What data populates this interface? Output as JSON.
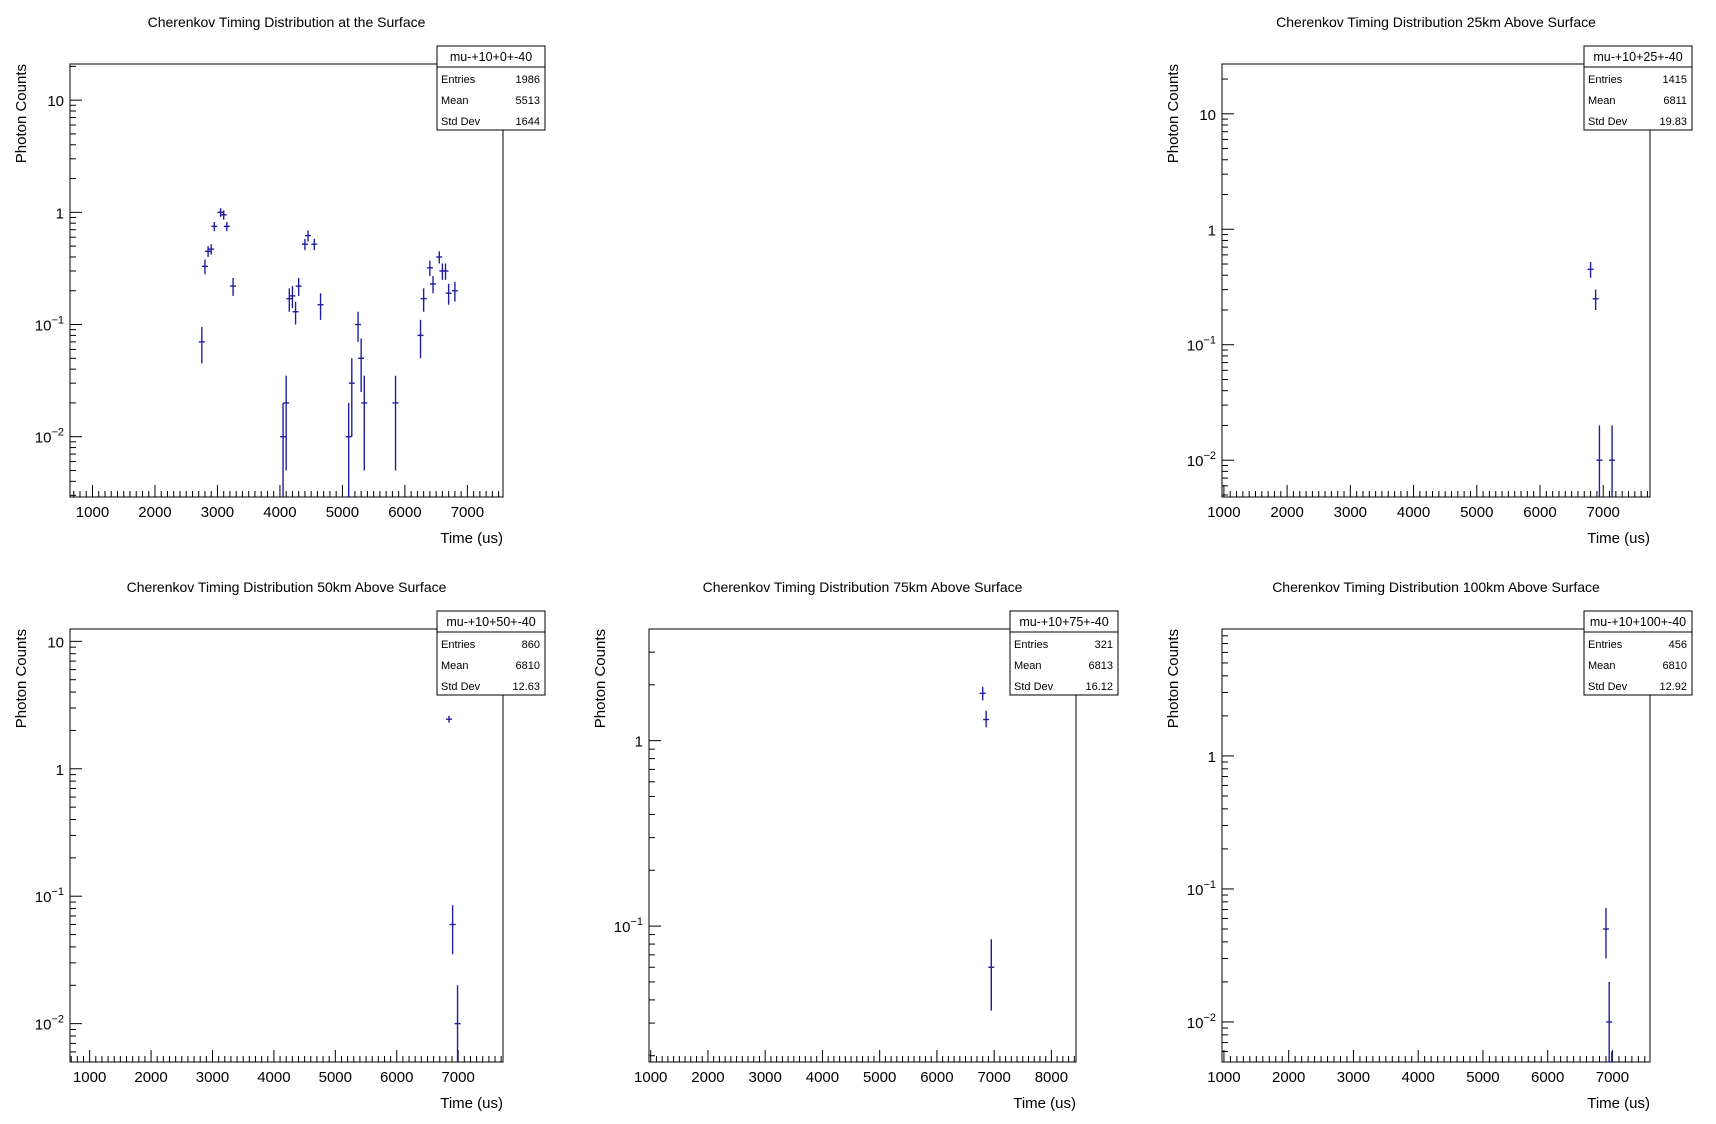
{
  "chart_data": [
    {
      "type": "scatter",
      "title": "Cherenkov Timing Distribution at the Surface",
      "xlabel": "Time (us)",
      "ylabel": "Photon Counts",
      "yscale": "log",
      "xlim": [
        640,
        7570
      ],
      "ylim": [
        0.0029,
        21
      ],
      "xticks": [
        "1000",
        "2000",
        "3000",
        "4000",
        "5000",
        "6000",
        "7000"
      ],
      "yticks": [
        {
          "v": 0.01,
          "l": "10",
          "e": "−2"
        },
        {
          "v": 0.1,
          "l": "10",
          "e": "−1"
        },
        {
          "v": 1,
          "l": "1",
          "e": ""
        },
        {
          "v": 10,
          "l": "10",
          "e": ""
        }
      ],
      "grid": false,
      "legend": {
        "name": "mu-+10+0+-40",
        "entries": "1986",
        "mean": "5513",
        "std_dev": "1644",
        "position": "top-right"
      },
      "series": [
        {
          "x": [
            2750,
            2800,
            2850,
            2900,
            2950,
            3050,
            3100,
            3150,
            3250,
            4050,
            4100,
            4150,
            4200,
            4250,
            4300,
            4400,
            4450,
            4550,
            4650,
            5100,
            5150,
            5250,
            5300,
            5350,
            5850,
            6250,
            6300,
            6400,
            6450,
            6550,
            6600,
            6650,
            6700,
            6800
          ],
          "y": [
            0.07,
            0.33,
            0.45,
            0.47,
            0.75,
            1.0,
            0.95,
            0.75,
            0.22,
            0.01,
            0.02,
            0.17,
            0.18,
            0.13,
            0.22,
            0.52,
            0.62,
            0.52,
            0.15,
            0.01,
            0.03,
            0.1,
            0.05,
            0.02,
            0.02,
            0.08,
            0.17,
            0.32,
            0.23,
            0.4,
            0.3,
            0.3,
            0.19,
            0.2
          ],
          "elo": [
            0.045,
            0.28,
            0.4,
            0.42,
            0.68,
            0.91,
            0.86,
            0.68,
            0.18,
            0.0,
            0.005,
            0.13,
            0.14,
            0.1,
            0.18,
            0.46,
            0.55,
            0.46,
            0.11,
            0.0,
            0.01,
            0.07,
            0.025,
            0.005,
            0.005,
            0.05,
            0.13,
            0.27,
            0.19,
            0.35,
            0.25,
            0.25,
            0.15,
            0.16
          ],
          "ehi": [
            0.095,
            0.38,
            0.5,
            0.52,
            0.82,
            1.09,
            1.04,
            0.82,
            0.26,
            0.02,
            0.035,
            0.21,
            0.22,
            0.16,
            0.26,
            0.58,
            0.69,
            0.58,
            0.19,
            0.02,
            0.05,
            0.13,
            0.075,
            0.035,
            0.035,
            0.11,
            0.21,
            0.37,
            0.27,
            0.45,
            0.35,
            0.35,
            0.23,
            0.24
          ]
        }
      ]
    },
    {
      "type": "scatter",
      "title": "Cherenkov Timing Distribution 25km Above Surface",
      "xlabel": "Time (us)",
      "ylabel": "Photon Counts",
      "yscale": "log",
      "xlim": [
        970,
        7740
      ],
      "ylim": [
        0.0048,
        27
      ],
      "xticks": [
        "1000",
        "2000",
        "3000",
        "4000",
        "5000",
        "6000",
        "7000"
      ],
      "yticks": [
        {
          "v": 0.01,
          "l": "10",
          "e": "−2"
        },
        {
          "v": 0.1,
          "l": "10",
          "e": "−1"
        },
        {
          "v": 1,
          "l": "1",
          "e": ""
        },
        {
          "v": 10,
          "l": "10",
          "e": ""
        }
      ],
      "grid": false,
      "legend": {
        "name": "mu-+10+25+-40",
        "entries": "1415",
        "mean": "6811",
        "std_dev": "19.83",
        "position": "top-right"
      },
      "series": [
        {
          "x": [
            6800,
            6880,
            6940,
            7140
          ],
          "y": [
            0.45,
            0.25,
            0.01,
            0.01
          ],
          "elo": [
            0.38,
            0.2,
            0.0,
            0.0
          ],
          "ehi": [
            0.52,
            0.3,
            0.02,
            0.02
          ]
        }
      ]
    },
    {
      "type": "scatter",
      "title": "Cherenkov Timing Distribution 50km Above Surface",
      "xlabel": "Time (us)",
      "ylabel": "Photon Counts",
      "yscale": "log",
      "xlim": [
        680,
        7730
      ],
      "ylim": [
        0.005,
        12.5
      ],
      "xticks": [
        "1000",
        "2000",
        "3000",
        "4000",
        "5000",
        "6000",
        "7000"
      ],
      "yticks": [
        {
          "v": 0.01,
          "l": "10",
          "e": "−2"
        },
        {
          "v": 0.1,
          "l": "10",
          "e": "−1"
        },
        {
          "v": 1,
          "l": "1",
          "e": ""
        },
        {
          "v": 10,
          "l": "10",
          "e": ""
        }
      ],
      "grid": false,
      "legend": {
        "name": "mu-+10+50+-40",
        "entries": "860",
        "mean": "6810",
        "std_dev": "12.63",
        "position": "top-right"
      },
      "series": [
        {
          "x": [
            6850,
            6910,
            6990
          ],
          "y": [
            2.45,
            0.06,
            0.01
          ],
          "elo": [
            2.3,
            0.035,
            0.0
          ],
          "ehi": [
            2.6,
            0.085,
            0.02
          ]
        }
      ]
    },
    {
      "type": "scatter",
      "title": "Cherenkov Timing Distribution 75km Above Surface",
      "xlabel": "Time (us)",
      "ylabel": "Photon Counts",
      "yscale": "log",
      "xlim": [
        970,
        8430
      ],
      "ylim": [
        0.0185,
        4.0
      ],
      "xticks": [
        "1000",
        "2000",
        "3000",
        "4000",
        "5000",
        "6000",
        "7000",
        "8000"
      ],
      "yticks": [
        {
          "v": 0.1,
          "l": "10",
          "e": "−1"
        },
        {
          "v": 1,
          "l": "1",
          "e": ""
        }
      ],
      "grid": false,
      "legend": {
        "name": "mu-+10+75+-40",
        "entries": "321",
        "mean": "6813",
        "std_dev": "16.12",
        "position": "top-right"
      },
      "series": [
        {
          "x": [
            6800,
            6860,
            6950
          ],
          "y": [
            1.8,
            1.3,
            0.06
          ],
          "elo": [
            1.65,
            1.18,
            0.035
          ],
          "ehi": [
            1.95,
            1.45,
            0.085
          ]
        }
      ]
    },
    {
      "type": "scatter",
      "title": "Cherenkov Timing Distribution 100km Above Surface",
      "xlabel": "Time (us)",
      "ylabel": "Photon Counts",
      "yscale": "log",
      "xlim": [
        970,
        7580
      ],
      "ylim": [
        0.005,
        9.0
      ],
      "xticks": [
        "1000",
        "2000",
        "3000",
        "4000",
        "5000",
        "6000",
        "7000"
      ],
      "yticks": [
        {
          "v": 0.01,
          "l": "10",
          "e": "−2"
        },
        {
          "v": 0.1,
          "l": "10",
          "e": "−1"
        },
        {
          "v": 1,
          "l": "1",
          "e": ""
        }
      ],
      "grid": false,
      "legend": {
        "name": "mu-+10+100+-40",
        "entries": "456",
        "mean": "6810",
        "std_dev": "12.92",
        "position": "top-right"
      },
      "series": [
        {
          "x": [
            6900,
            6950,
            6990
          ],
          "y": [
            0.05,
            0.01,
            0.005
          ],
          "elo": [
            0.03,
            0.0,
            0.0
          ],
          "ehi": [
            0.072,
            0.02,
            0.006
          ]
        }
      ]
    }
  ],
  "stat_labels": {
    "entries": "Entries",
    "mean": "Mean",
    "std_dev": "Std Dev"
  }
}
